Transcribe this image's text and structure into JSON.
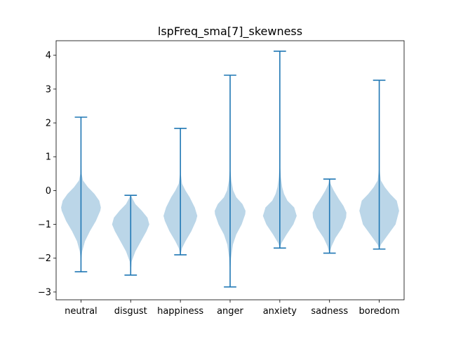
{
  "chart_data": {
    "type": "violin",
    "title": "lspFreq_sma[7]_skewness",
    "xlabel": "",
    "ylabel": "",
    "categories": [
      "neutral",
      "disgust",
      "happiness",
      "anger",
      "anxiety",
      "sadness",
      "boredom"
    ],
    "ylim": [
      -3.23,
      4.43
    ],
    "yticks": [
      -3,
      -2,
      -1,
      0,
      1,
      2,
      3,
      4
    ],
    "grid": false,
    "colors": {
      "violin_fill": "#1f77b4",
      "line": "#1f77b4"
    },
    "violins": [
      {
        "category": "neutral",
        "min": -2.4,
        "max": 2.17,
        "center": -0.5,
        "width": 0.8,
        "profile": [
          [
            -2.4,
            0
          ],
          [
            -2.0,
            0.02
          ],
          [
            -1.8,
            0.06
          ],
          [
            -1.5,
            0.2
          ],
          [
            -1.2,
            0.45
          ],
          [
            -0.9,
            0.75
          ],
          [
            -0.6,
            0.97
          ],
          [
            -0.5,
            1.0
          ],
          [
            -0.3,
            0.92
          ],
          [
            -0.1,
            0.68
          ],
          [
            0.1,
            0.35
          ],
          [
            0.3,
            0.1
          ],
          [
            0.5,
            0.03
          ],
          [
            1.0,
            0.01
          ],
          [
            2.17,
            0
          ]
        ]
      },
      {
        "category": "disgust",
        "min": -2.5,
        "max": -0.14,
        "center": -1.0,
        "width": 0.75,
        "profile": [
          [
            -2.5,
            0
          ],
          [
            -2.1,
            0.05
          ],
          [
            -1.8,
            0.25
          ],
          [
            -1.5,
            0.55
          ],
          [
            -1.2,
            0.85
          ],
          [
            -1.0,
            1.0
          ],
          [
            -0.8,
            0.9
          ],
          [
            -0.6,
            0.6
          ],
          [
            -0.4,
            0.25
          ],
          [
            -0.14,
            0
          ]
        ]
      },
      {
        "category": "happiness",
        "min": -1.9,
        "max": 1.84,
        "center": -0.75,
        "width": 0.68,
        "profile": [
          [
            -1.9,
            0
          ],
          [
            -1.7,
            0.1
          ],
          [
            -1.5,
            0.3
          ],
          [
            -1.2,
            0.65
          ],
          [
            -0.9,
            0.92
          ],
          [
            -0.75,
            1.0
          ],
          [
            -0.5,
            0.85
          ],
          [
            -0.2,
            0.55
          ],
          [
            0.0,
            0.3
          ],
          [
            0.2,
            0.1
          ],
          [
            0.5,
            0.02
          ],
          [
            1.84,
            0
          ]
        ]
      },
      {
        "category": "anger",
        "min": -2.85,
        "max": 3.41,
        "center": -0.65,
        "width": 0.62,
        "profile": [
          [
            -2.85,
            0
          ],
          [
            -2.3,
            0.02
          ],
          [
            -2.0,
            0.06
          ],
          [
            -1.6,
            0.18
          ],
          [
            -1.3,
            0.4
          ],
          [
            -1.0,
            0.75
          ],
          [
            -0.7,
            0.98
          ],
          [
            -0.6,
            1.0
          ],
          [
            -0.4,
            0.8
          ],
          [
            -0.2,
            0.4
          ],
          [
            0.0,
            0.2
          ],
          [
            0.3,
            0.08
          ],
          [
            0.6,
            0.02
          ],
          [
            1.2,
            0.005
          ],
          [
            3.41,
            0
          ]
        ]
      },
      {
        "category": "anxiety",
        "min": -1.7,
        "max": 4.12,
        "center": -0.75,
        "width": 0.68,
        "profile": [
          [
            -1.7,
            0
          ],
          [
            -1.55,
            0.1
          ],
          [
            -1.3,
            0.4
          ],
          [
            -1.0,
            0.8
          ],
          [
            -0.75,
            1.0
          ],
          [
            -0.5,
            0.85
          ],
          [
            -0.3,
            0.45
          ],
          [
            -0.1,
            0.25
          ],
          [
            0.1,
            0.14
          ],
          [
            0.4,
            0.06
          ],
          [
            0.8,
            0.01
          ],
          [
            1.5,
            0.003
          ],
          [
            4.12,
            0
          ]
        ]
      },
      {
        "category": "sadness",
        "min": -1.85,
        "max": 0.34,
        "center": -0.65,
        "width": 0.68,
        "profile": [
          [
            -1.85,
            0
          ],
          [
            -1.65,
            0.12
          ],
          [
            -1.4,
            0.35
          ],
          [
            -1.1,
            0.75
          ],
          [
            -0.8,
            0.98
          ],
          [
            -0.65,
            1.0
          ],
          [
            -0.45,
            0.82
          ],
          [
            -0.25,
            0.55
          ],
          [
            0.0,
            0.25
          ],
          [
            0.2,
            0.06
          ],
          [
            0.34,
            0
          ]
        ]
      },
      {
        "category": "boredom",
        "min": -1.73,
        "max": 3.26,
        "center": -0.6,
        "width": 0.8,
        "profile": [
          [
            -1.73,
            0
          ],
          [
            -1.6,
            0.08
          ],
          [
            -1.3,
            0.45
          ],
          [
            -1.0,
            0.82
          ],
          [
            -0.6,
            1.0
          ],
          [
            -0.3,
            0.88
          ],
          [
            -0.1,
            0.55
          ],
          [
            0.1,
            0.28
          ],
          [
            0.3,
            0.08
          ],
          [
            0.6,
            0.02
          ],
          [
            1.2,
            0.005
          ],
          [
            3.26,
            0
          ]
        ]
      }
    ]
  }
}
